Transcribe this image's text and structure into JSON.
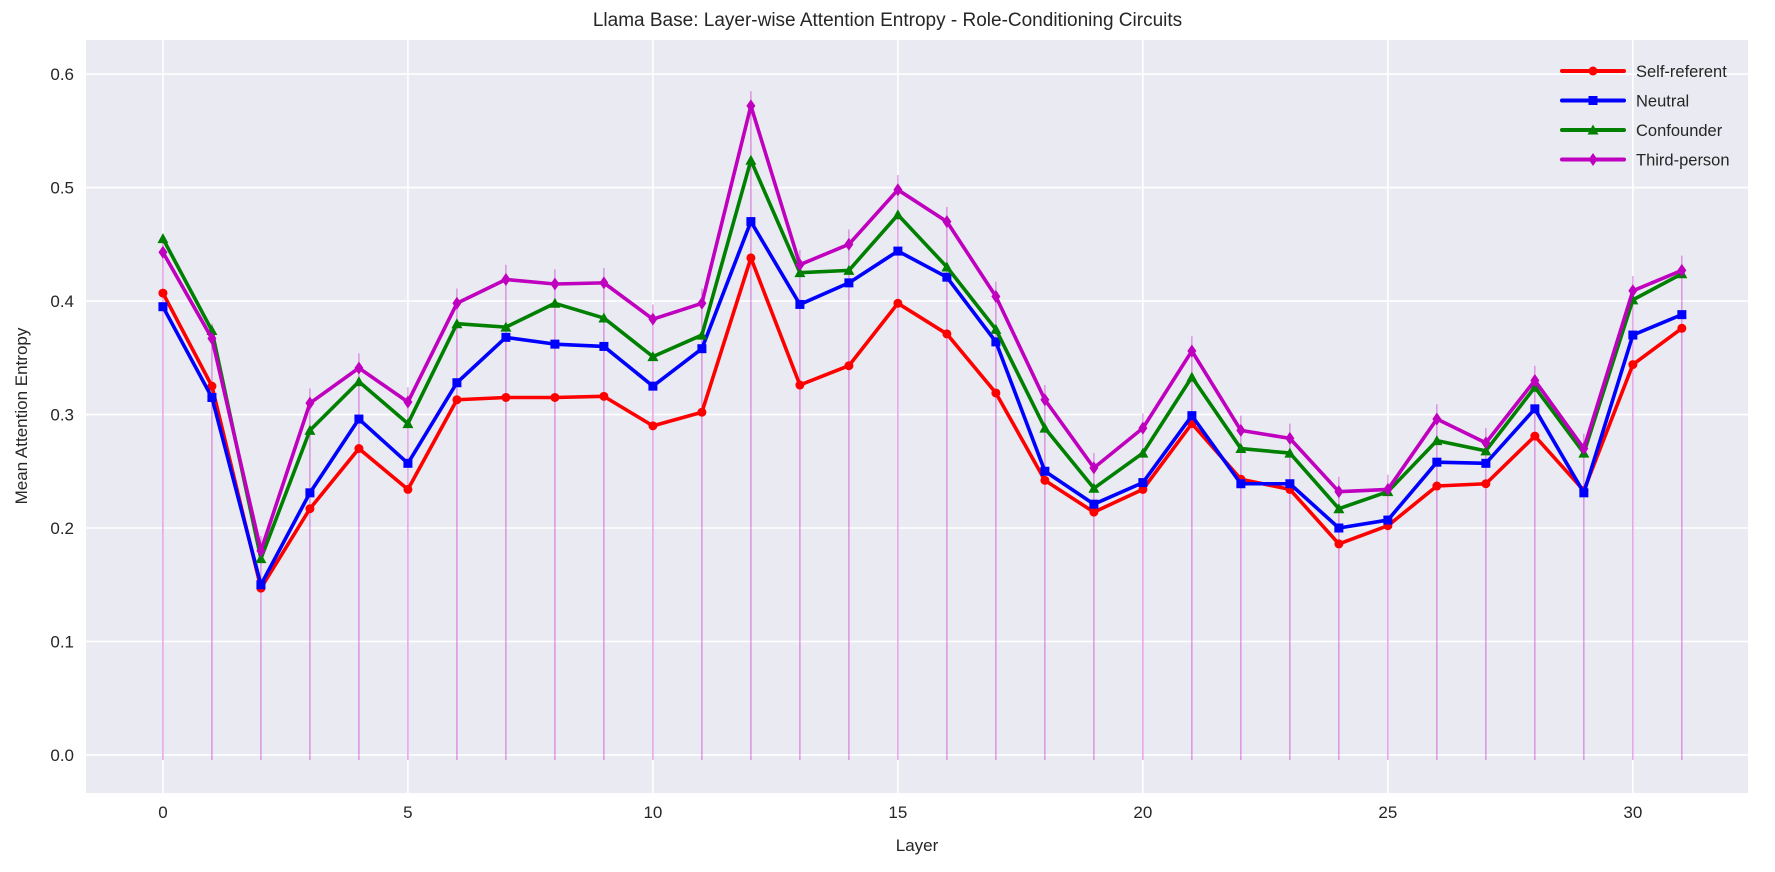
{
  "title": "Llama Base: Layer-wise Attention Entropy - Role-Conditioning Circuits",
  "chart_data": {
    "type": "line",
    "title": "Llama Base: Layer-wise Attention Entropy - Role-Conditioning Circuits",
    "xlabel": "Layer",
    "ylabel": "Mean Attention Entropy",
    "x": [
      0,
      1,
      2,
      3,
      4,
      5,
      6,
      7,
      8,
      9,
      10,
      11,
      12,
      13,
      14,
      15,
      16,
      17,
      18,
      19,
      20,
      21,
      22,
      23,
      24,
      25,
      26,
      27,
      28,
      29,
      30,
      31
    ],
    "xticks": [
      0,
      5,
      10,
      15,
      20,
      25,
      30
    ],
    "yticks": [
      "0.0",
      "0.1",
      "0.2",
      "0.3",
      "0.4",
      "0.5",
      "0.6"
    ],
    "xlim": [
      -1.57,
      32.35
    ],
    "ylim": [
      -0.0335,
      0.63
    ],
    "grid": true,
    "legend_position": "upper right",
    "plot_background": "#EAEAF2",
    "gridline_color": "#FFFFFF",
    "stem_color": "#BF00BF",
    "text_color": "#262626",
    "series": [
      {
        "name": "Self-referent",
        "color": "#FF0000",
        "marker": "circle",
        "values": [
          0.407,
          0.325,
          0.147,
          0.217,
          0.27,
          0.234,
          0.313,
          0.315,
          0.315,
          0.316,
          0.29,
          0.302,
          0.438,
          0.326,
          0.343,
          0.398,
          0.371,
          0.319,
          0.242,
          0.214,
          0.234,
          0.292,
          0.243,
          0.234,
          0.186,
          0.202,
          0.237,
          0.239,
          0.281,
          0.233,
          0.344,
          0.376
        ]
      },
      {
        "name": "Neutral",
        "color": "#0000FF",
        "marker": "square",
        "values": [
          0.395,
          0.315,
          0.15,
          0.231,
          0.296,
          0.257,
          0.328,
          0.368,
          0.362,
          0.36,
          0.325,
          0.358,
          0.47,
          0.397,
          0.416,
          0.444,
          0.421,
          0.364,
          0.25,
          0.221,
          0.24,
          0.299,
          0.239,
          0.239,
          0.2,
          0.207,
          0.258,
          0.257,
          0.305,
          0.231,
          0.37,
          0.388
        ]
      },
      {
        "name": "Confounder",
        "color": "#008000",
        "marker": "triangle",
        "values": [
          0.455,
          0.374,
          0.173,
          0.286,
          0.329,
          0.292,
          0.38,
          0.377,
          0.398,
          0.385,
          0.351,
          0.37,
          0.524,
          0.425,
          0.427,
          0.476,
          0.43,
          0.375,
          0.288,
          0.235,
          0.266,
          0.333,
          0.27,
          0.266,
          0.217,
          0.232,
          0.277,
          0.268,
          0.324,
          0.266,
          0.401,
          0.424
        ]
      },
      {
        "name": "Third-person",
        "color": "#BF00BF",
        "marker": "diamond",
        "values": [
          0.443,
          0.367,
          0.18,
          0.31,
          0.341,
          0.311,
          0.398,
          0.419,
          0.415,
          0.416,
          0.384,
          0.398,
          0.572,
          0.432,
          0.45,
          0.498,
          0.47,
          0.404,
          0.313,
          0.253,
          0.288,
          0.356,
          0.286,
          0.279,
          0.232,
          0.234,
          0.296,
          0.275,
          0.33,
          0.27,
          0.409,
          0.427
        ]
      }
    ]
  }
}
